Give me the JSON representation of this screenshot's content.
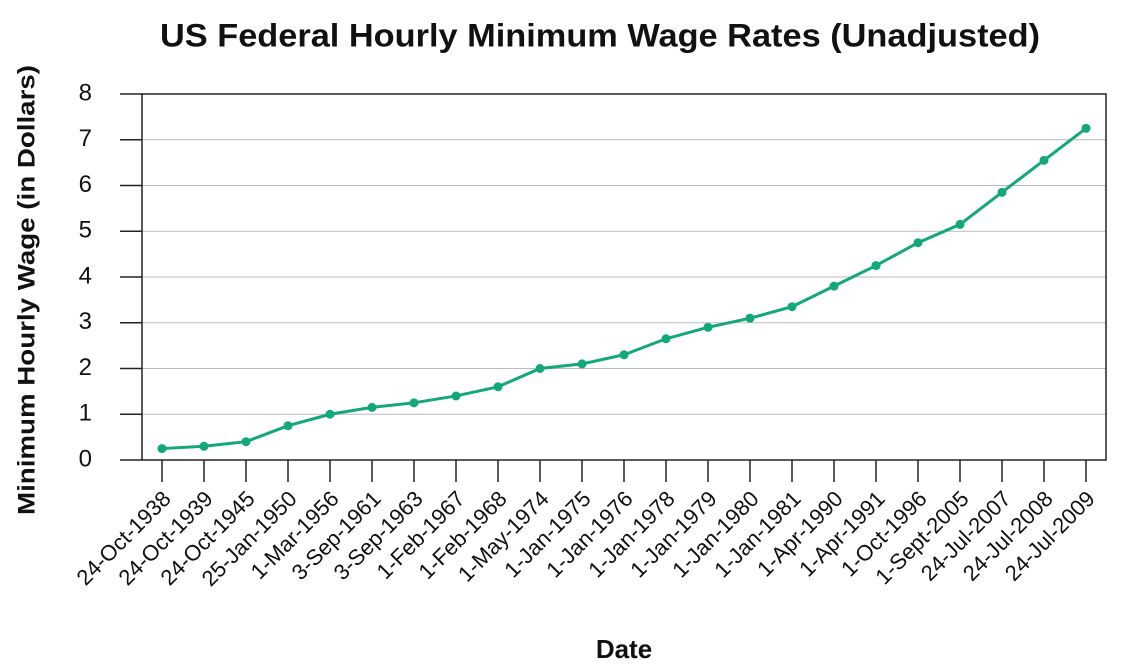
{
  "chart_data": {
    "type": "line",
    "title": "US Federal Hourly Minimum Wage Rates (Unadjusted)",
    "x_label": "Date",
    "y_label": "Minimum Hourly Wage (in Dollars)",
    "categories": [
      "24-Oct-1938",
      "24-Oct-1939",
      "24-Oct-1945",
      "25-Jan-1950",
      "1-Mar-1956",
      "3-Sep-1961",
      "3-Sep-1963",
      "1-Feb-1967",
      "1-Feb-1968",
      "1-May-1974",
      "1-Jan-1975",
      "1-Jan-1976",
      "1-Jan-1978",
      "1-Jan-1979",
      "1-Jan-1980",
      "1-Jan-1981",
      "1-Apr-1990",
      "1-Apr-1991",
      "1-Oct-1996",
      "1-Sept-2005",
      "24-Jul-2007",
      "24-Jul-2008",
      "24-Jul-2009"
    ],
    "values": [
      0.25,
      0.3,
      0.4,
      0.75,
      1.0,
      1.15,
      1.25,
      1.4,
      1.6,
      2.0,
      2.1,
      2.3,
      2.65,
      2.9,
      3.1,
      3.35,
      3.8,
      4.25,
      4.75,
      5.15,
      5.85,
      6.55,
      7.25
    ],
    "color": "#12a877",
    "ylim": [
      0,
      8
    ],
    "yticks": [
      0,
      1,
      2,
      3,
      4,
      5,
      6,
      7,
      8
    ],
    "grid": true
  }
}
